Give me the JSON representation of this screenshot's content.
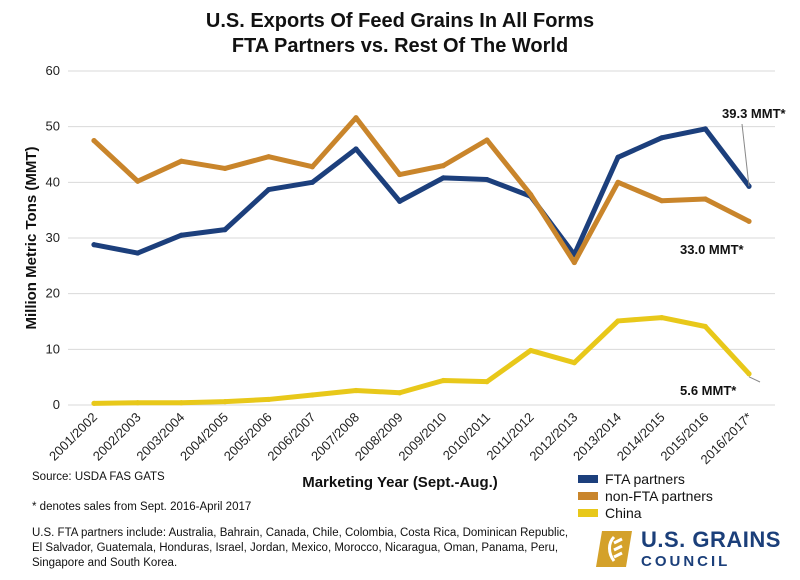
{
  "chart_data": {
    "type": "line",
    "title_lines": [
      "U.S. Exports Of Feed Grains In All Forms",
      "FTA Partners vs. Rest Of The World"
    ],
    "xlabel": "Marketing Year (Sept.-Aug.)",
    "ylabel": "Million Metric Tons (MMT)",
    "ylim": [
      0,
      60
    ],
    "yticks": [
      "0",
      "10",
      "20",
      "30",
      "40",
      "50",
      "60"
    ],
    "grid": true,
    "legend_position": "bottom-right",
    "categories": [
      "2001/2002",
      "2002/2003",
      "2003/2004",
      "2004/2005",
      "2005/2006",
      "2006/2007",
      "2007/2008",
      "2008/2009",
      "2009/2010",
      "2010/2011",
      "2011/2012",
      "2012/2013",
      "2013/2014",
      "2014/2015",
      "2015/2016",
      "2016/2017*"
    ],
    "series": [
      {
        "name": "FTA partners",
        "color": "#1c3f7c",
        "values": [
          28.8,
          27.3,
          30.5,
          31.5,
          38.7,
          40.0,
          46.0,
          36.6,
          40.8,
          40.5,
          37.5,
          27.0,
          44.5,
          48.0,
          49.6,
          39.3
        ]
      },
      {
        "name": "non-FTA partners",
        "color": "#c9852b",
        "values": [
          47.5,
          40.2,
          43.8,
          42.5,
          44.6,
          42.8,
          51.6,
          41.4,
          43.0,
          47.6,
          37.8,
          25.6,
          40.0,
          36.7,
          37.0,
          33.0
        ]
      },
      {
        "name": "China",
        "color": "#e8c81a",
        "values": [
          0.3,
          0.4,
          0.4,
          0.6,
          1.0,
          1.8,
          2.6,
          2.2,
          4.4,
          4.2,
          9.8,
          7.6,
          15.1,
          15.7,
          14.1,
          5.6
        ]
      }
    ],
    "annotations": [
      "39.3 MMT*",
      "33.0 MMT*",
      "5.6 MMT*"
    ]
  },
  "footer": {
    "source": "Source: USDA FAS GATS",
    "asterisk_note": "* denotes sales from Sept. 2016-April 2017",
    "fta_note_lines": [
      "U.S. FTA partners include: Australia, Bahrain, Canada, Chile, Colombia, Costa Rica, Dominican Republic,",
      "El Salvador, Guatemala, Honduras, Israel, Jordan, Mexico, Morocco, Nicaragua, Oman, Panama, Peru,",
      "Singapore and South Korea."
    ]
  },
  "logo": {
    "line1": "U.S. GRAINS",
    "line2": "COUNCIL",
    "gold": "#d4a12a",
    "navy": "#1b3f7a"
  }
}
